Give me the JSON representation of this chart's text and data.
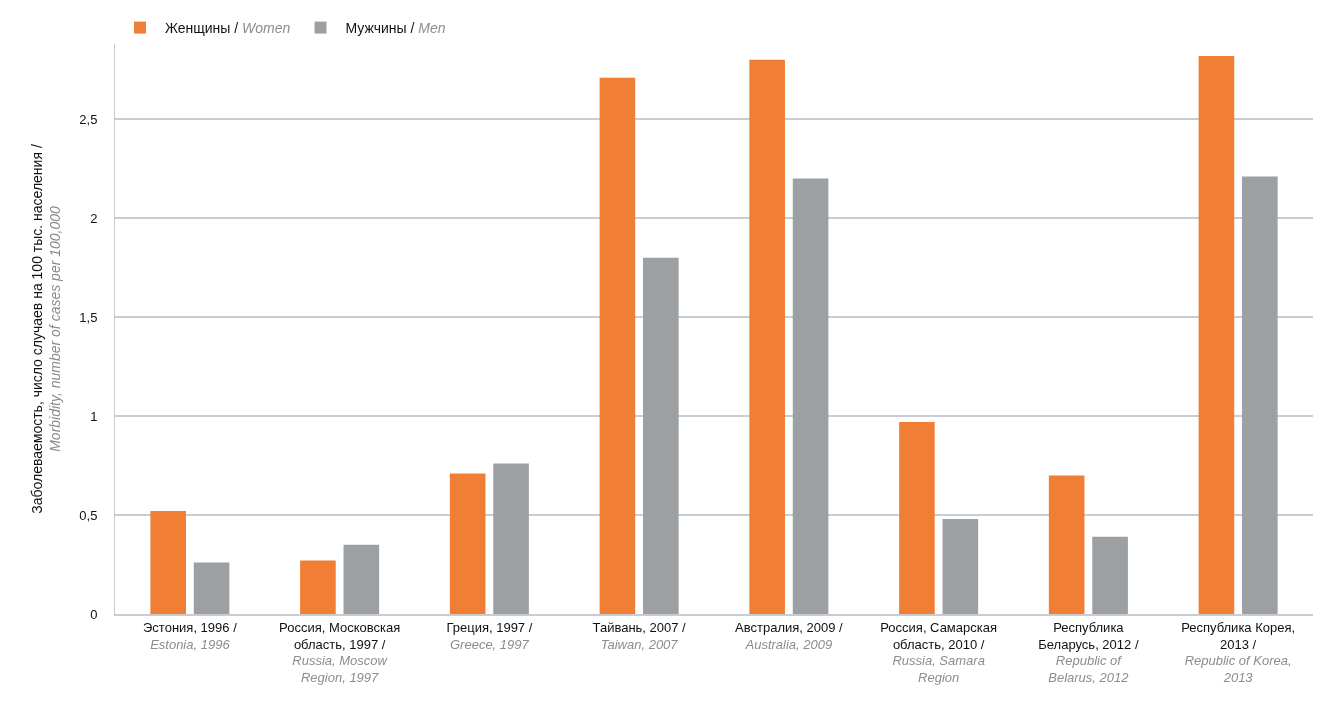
{
  "chart_data": {
    "type": "bar",
    "ylabel": "Заболеваемость, число случаев на 100 тыс. населения / Morbidity, number of cases per 100,000",
    "categories": [
      "Эстония, 1996 / Estonia, 1996",
      "Россия, Московская область, 1997 / Russia, Moscow Region, 1997",
      "Греция, 1997 / Greece, 1997",
      "Тайвань, 2007 / Taiwan, 2007",
      "Австралия, 2009 / Australia, 2009",
      "Россия, Самарская область, 2010 / Russia, Samara Region",
      "Республика Беларусь, 2012 / Republic of Belarus, 2012",
      "Республика Корея, 2013 / Republic of Korea, 2013"
    ],
    "series": [
      {
        "name": "Женщины / Women",
        "color": "#f07f35",
        "values": [
          0.52,
          0.27,
          0.71,
          2.71,
          2.8,
          0.97,
          0.7,
          2.82
        ]
      },
      {
        "name": "Мужчины / Men",
        "color": "#9ca0a3",
        "values": [
          0.26,
          0.35,
          0.76,
          1.8,
          2.2,
          0.48,
          0.39,
          2.21
        ]
      }
    ],
    "ylim": [
      0,
      2.88
    ],
    "yticks": [
      0,
      {
        "value": 0.5,
        "label": "0,5"
      },
      1,
      {
        "value": 1.5,
        "label": "1,5"
      },
      2,
      {
        "value": 2.5,
        "label": "2,5"
      }
    ],
    "grid": "y",
    "legend": "top left"
  }
}
